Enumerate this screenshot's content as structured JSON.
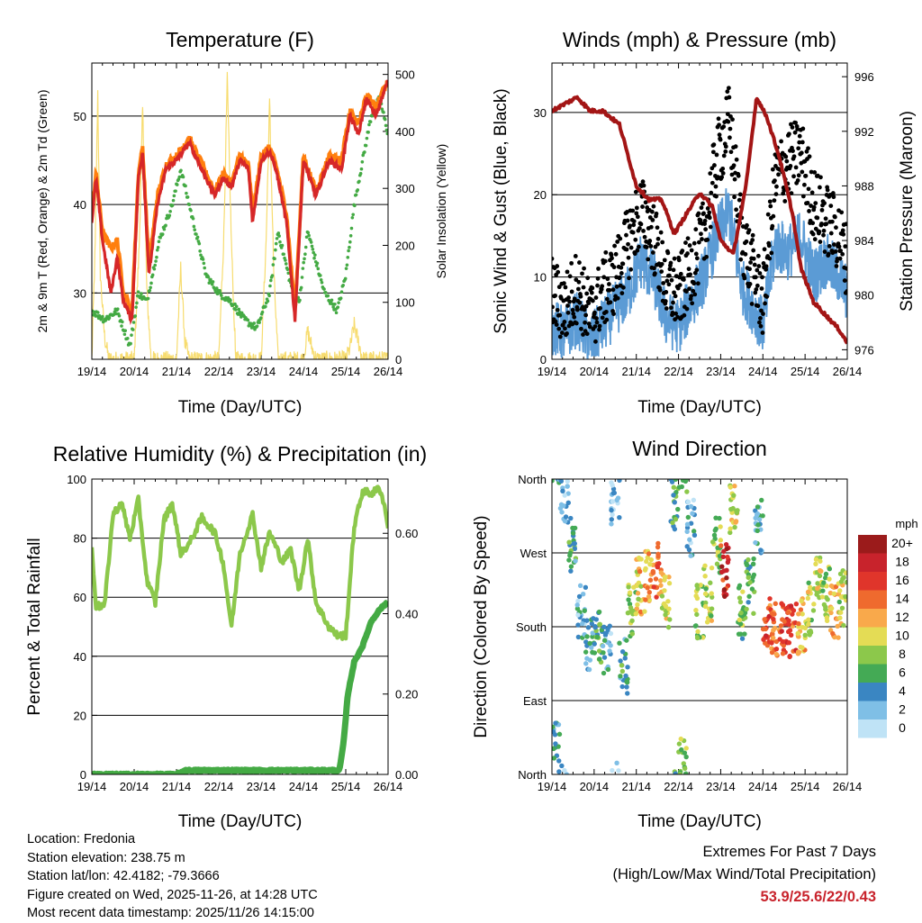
{
  "colors": {
    "temp2m": "#d62728",
    "temp9m": "#ff7f0e",
    "dewpoint": "#44aa44",
    "solar": "#f7dc6f",
    "wind": "#5b9bd5",
    "gust": "#000000",
    "pressure": "#a31515",
    "rh": "#8cc84b",
    "precip": "#44aa44",
    "extremes_text": "#c8232c"
  },
  "chart_data": [
    {
      "id": "temperature",
      "type": "line",
      "title": "Temperature (F)",
      "xlabel": "Time (Day/UTC)",
      "ylabel": "2m & 9m T (Red, Orange) & 2m Td (Green)",
      "y2label": "Solar Insolation (Yellow)",
      "x_ticks": [
        "19/14",
        "20/14",
        "21/14",
        "22/14",
        "23/14",
        "24/14",
        "25/14",
        "26/14"
      ],
      "ylim": [
        22.5,
        56
      ],
      "y_ticks": [
        30,
        40,
        50
      ],
      "y2lim": [
        0,
        520
      ],
      "y2_ticks": [
        0,
        100,
        200,
        300,
        400,
        500
      ],
      "grid_y": [
        30,
        40,
        50
      ],
      "series": [
        {
          "name": "2m T",
          "axis": "left",
          "x": [
            0,
            0.1,
            0.25,
            0.45,
            0.6,
            0.75,
            0.95,
            1.1,
            1.2,
            1.35,
            1.55,
            1.75,
            2.0,
            2.3,
            2.6,
            2.9,
            3.1,
            3.3,
            3.5,
            3.7,
            3.8,
            4.0,
            4.2,
            4.35,
            4.6,
            4.8,
            5.0,
            5.3,
            5.6,
            5.9,
            6.1,
            6.3,
            6.5,
            6.7,
            7.0
          ],
          "values": [
            38,
            43,
            36,
            30,
            34,
            29,
            27,
            43,
            46,
            32,
            40,
            44,
            45,
            47,
            44,
            41,
            43,
            42,
            45,
            44,
            38,
            45,
            46,
            44,
            38,
            27,
            45,
            41,
            45,
            44,
            50,
            48,
            52,
            50,
            54
          ]
        },
        {
          "name": "9m T",
          "axis": "left",
          "x": [
            0,
            0.1,
            0.25,
            0.45,
            0.6,
            0.75,
            0.95,
            1.1,
            1.2,
            1.35,
            1.55,
            1.75,
            2.0,
            2.3,
            2.6,
            2.9,
            3.1,
            3.3,
            3.5,
            3.7,
            3.8,
            4.0,
            4.2,
            4.35,
            4.6,
            4.8,
            5.0,
            5.3,
            5.6,
            5.9,
            6.1,
            6.3,
            6.5,
            6.7,
            7.0
          ],
          "values": [
            39,
            43.5,
            37,
            35,
            36,
            30,
            28,
            43.5,
            46.5,
            33,
            41,
            44.5,
            45.5,
            47.5,
            44.5,
            41.5,
            43.5,
            42.5,
            45.5,
            44.5,
            39,
            45.5,
            46.5,
            44.5,
            39,
            28,
            45.5,
            41.5,
            45.5,
            45,
            50.5,
            49,
            52.5,
            51,
            54
          ]
        },
        {
          "name": "2m Td",
          "axis": "left",
          "x": [
            0,
            0.3,
            0.6,
            0.9,
            1.1,
            1.3,
            1.6,
            1.9,
            2.1,
            2.4,
            2.7,
            3.0,
            3.3,
            3.6,
            3.9,
            4.2,
            4.4,
            4.7,
            4.9,
            5.1,
            5.5,
            5.8,
            6.0,
            6.2,
            6.4,
            6.6,
            6.8,
            7.0
          ],
          "values": [
            28,
            27,
            28,
            24,
            30,
            29,
            36,
            40,
            44,
            38,
            32,
            30,
            29,
            27,
            26,
            30,
            37,
            31,
            29,
            37,
            30,
            28,
            32,
            40,
            45,
            50,
            52,
            48
          ]
        },
        {
          "name": "Solar Insolation",
          "axis": "right",
          "x": [
            0,
            0.08,
            0.14,
            0.2,
            0.3,
            0.4,
            1.0,
            1.12,
            1.2,
            1.3,
            1.4,
            2.0,
            2.1,
            2.2,
            2.3,
            3.0,
            3.12,
            3.2,
            3.3,
            3.4,
            4.0,
            4.12,
            4.2,
            4.3,
            4.4,
            5.0,
            5.1,
            5.2,
            5.3,
            6.0,
            6.1,
            6.2,
            6.3,
            6.4,
            7.0
          ],
          "values": [
            0,
            200,
            470,
            150,
            40,
            0,
            0,
            200,
            440,
            120,
            0,
            0,
            160,
            30,
            0,
            0,
            220,
            490,
            200,
            0,
            0,
            210,
            450,
            150,
            0,
            0,
            50,
            20,
            0,
            0,
            20,
            60,
            30,
            0,
            0
          ]
        }
      ]
    },
    {
      "id": "winds",
      "type": "scatter",
      "title": "Winds (mph) & Pressure (mb)",
      "xlabel": "Time (Day/UTC)",
      "ylabel": "Sonic Wind & Gust (Blue, Black)",
      "y2label": "Station Pressure (Maroon)",
      "x_ticks": [
        "19/14",
        "20/14",
        "21/14",
        "22/14",
        "23/14",
        "24/14",
        "25/14",
        "26/14"
      ],
      "ylim": [
        0,
        36
      ],
      "y_ticks": [
        0,
        10,
        20,
        30
      ],
      "y2lim": [
        975.3,
        997.0
      ],
      "y2_ticks": [
        976,
        980,
        984,
        988,
        992,
        996
      ],
      "grid_y": [
        10,
        20,
        30
      ],
      "series": [
        {
          "name": "Sonic Wind",
          "axis": "left",
          "x": [
            0,
            0.3,
            0.6,
            0.9,
            1.2,
            1.5,
            1.8,
            2.1,
            2.4,
            2.7,
            3.0,
            3.3,
            3.6,
            3.9,
            4.2,
            4.5,
            4.8,
            5.0,
            5.3,
            5.6,
            5.9,
            6.2,
            6.5,
            6.8,
            7.0
          ],
          "values": [
            4,
            3,
            5,
            2,
            4,
            6,
            8,
            12,
            10,
            5,
            4,
            7,
            10,
            15,
            18,
            9,
            6,
            4,
            14,
            13,
            15,
            10,
            12,
            10,
            8
          ]
        },
        {
          "name": "Gust",
          "axis": "left",
          "x": [
            0,
            0.3,
            0.6,
            0.9,
            1.2,
            1.5,
            1.8,
            2.1,
            2.4,
            2.7,
            3.0,
            3.3,
            3.6,
            3.9,
            4.2,
            4.5,
            4.8,
            5.0,
            5.3,
            5.6,
            5.9,
            6.2,
            6.5,
            6.8,
            7.0
          ],
          "values": [
            8,
            6,
            9,
            5,
            8,
            10,
            14,
            18,
            15,
            9,
            8,
            11,
            15,
            24,
            29,
            15,
            10,
            7,
            22,
            24,
            25,
            19,
            17,
            15,
            12
          ]
        },
        {
          "name": "Station Pressure",
          "axis": "right",
          "x": [
            0,
            0.3,
            0.6,
            0.9,
            1.2,
            1.6,
            2.0,
            2.3,
            2.6,
            2.9,
            3.2,
            3.5,
            3.8,
            4.0,
            4.3,
            4.6,
            4.85,
            5.1,
            5.4,
            5.7,
            5.9,
            6.2,
            6.5,
            6.8,
            7.0
          ],
          "values": [
            993.5,
            994,
            994.5,
            993.5,
            993.5,
            992.5,
            988,
            987,
            987,
            984.5,
            986,
            987.5,
            986.5,
            984,
            983,
            988,
            994.5,
            993,
            990,
            986,
            982,
            979.5,
            978.5,
            977.5,
            976.5
          ]
        }
      ]
    },
    {
      "id": "humidity",
      "type": "line",
      "title": "Relative Humidity (%) & Precipitation (in)",
      "xlabel": "Time (Day/UTC)",
      "ylabel": "Percent & Total Rainfall",
      "x_ticks": [
        "19/14",
        "20/14",
        "21/14",
        "22/14",
        "23/14",
        "24/14",
        "25/14",
        "26/14"
      ],
      "ylim": [
        0,
        100
      ],
      "y_ticks": [
        0,
        20,
        40,
        60,
        80,
        100
      ],
      "y2lim": [
        0,
        0.735
      ],
      "y2_ticks": [
        0.0,
        0.2,
        0.4,
        0.6
      ],
      "y2_tick_labels": [
        "0.00",
        "0.20",
        "0.40",
        "0.60"
      ],
      "grid_y": [
        20,
        40,
        60,
        80
      ],
      "series": [
        {
          "name": "Relative Humidity",
          "axis": "left",
          "x": [
            0,
            0.1,
            0.3,
            0.5,
            0.7,
            0.9,
            1.1,
            1.3,
            1.5,
            1.7,
            1.9,
            2.1,
            2.3,
            2.6,
            2.9,
            3.1,
            3.3,
            3.5,
            3.8,
            4.0,
            4.2,
            4.5,
            4.7,
            4.9,
            5.1,
            5.3,
            5.6,
            5.8,
            6.0,
            6.2,
            6.4,
            6.6,
            6.8,
            6.9,
            7.0
          ],
          "values": [
            76,
            57,
            57,
            88,
            92,
            80,
            93,
            66,
            58,
            86,
            92,
            75,
            78,
            87,
            82,
            72,
            50,
            75,
            88,
            70,
            82,
            72,
            76,
            62,
            80,
            58,
            50,
            47,
            47,
            84,
            96,
            95,
            97,
            92,
            84
          ]
        },
        {
          "name": "Total Precipitation",
          "axis": "right",
          "x": [
            0,
            1.0,
            2.0,
            2.2,
            3.0,
            4.0,
            5.0,
            5.85,
            5.95,
            6.05,
            6.2,
            6.4,
            6.6,
            6.8,
            7.0
          ],
          "values": [
            0.0,
            0.0,
            0.0,
            0.01,
            0.01,
            0.01,
            0.01,
            0.01,
            0.08,
            0.2,
            0.28,
            0.32,
            0.38,
            0.41,
            0.43
          ]
        }
      ]
    },
    {
      "id": "wind_direction",
      "type": "scatter",
      "title": "Wind Direction",
      "xlabel": "Time (Day/UTC)",
      "ylabel": "Direction (Colored By Speed)",
      "x_ticks": [
        "19/14",
        "20/14",
        "21/14",
        "22/14",
        "23/14",
        "24/14",
        "25/14",
        "26/14"
      ],
      "ylim": [
        0,
        360
      ],
      "y_ticks": [
        0,
        90,
        180,
        270,
        360
      ],
      "y_tick_labels": [
        "North",
        "East",
        "South",
        "West",
        "North"
      ],
      "grid_y": [
        90,
        180,
        270
      ],
      "legend_title": "mph",
      "legend_labels": [
        "20+",
        "18",
        "16",
        "14",
        "12",
        "10",
        "8",
        "6",
        "4",
        "2",
        "0"
      ],
      "legend_colors": [
        "#9b1b1b",
        "#c8232c",
        "#e0352b",
        "#ef6a2e",
        "#f9a94b",
        "#e4dc55",
        "#8cc84b",
        "#44aa55",
        "#3a86c2",
        "#7fbfe6",
        "#bfe3f6"
      ],
      "series": [
        {
          "name": "Direction",
          "axis": "left",
          "x": [
            0.1,
            0.3,
            0.5,
            0.7,
            0.9,
            1.1,
            1.3,
            1.5,
            1.7,
            1.9,
            2.1,
            2.3,
            2.5,
            2.7,
            2.9,
            3.1,
            3.3,
            3.5,
            3.7,
            3.9,
            4.1,
            4.3,
            4.5,
            4.7,
            4.9,
            5.1,
            5.3,
            5.5,
            5.7,
            5.9,
            6.1,
            6.3,
            6.5,
            6.7,
            6.9
          ],
          "values": [
            30,
            340,
            280,
            200,
            160,
            170,
            150,
            340,
            130,
            200,
            230,
            240,
            250,
            210,
            330,
            10,
            300,
            200,
            220,
            280,
            250,
            320,
            200,
            230,
            300,
            190,
            180,
            180,
            175,
            180,
            200,
            240,
            220,
            200,
            215
          ],
          "speeds": [
            4,
            2,
            5,
            3,
            4,
            6,
            3,
            2,
            5,
            8,
            11,
            12,
            14,
            9,
            6,
            7,
            3,
            8,
            9,
            8,
            17,
            10,
            7,
            6,
            4,
            15,
            14,
            16,
            15,
            12,
            9,
            10,
            8,
            12,
            9
          ]
        }
      ]
    }
  ],
  "info": {
    "location": "Location: Fredonia",
    "elevation": "Station elevation: 238.75 m",
    "latlon": "Station lat/lon: 42.4182; -79.3666",
    "created": "Figure created on Wed, 2025-11-26, at 14:28 UTC",
    "recent": "Most recent data timestamp: 2025/11/26 14:15:00"
  },
  "extremes": {
    "title": "Extremes For Past 7 Days",
    "subtitle": "(High/Low/Max Wind/Total Precipitation)",
    "values": "53.9/25.6/22/0.43"
  }
}
